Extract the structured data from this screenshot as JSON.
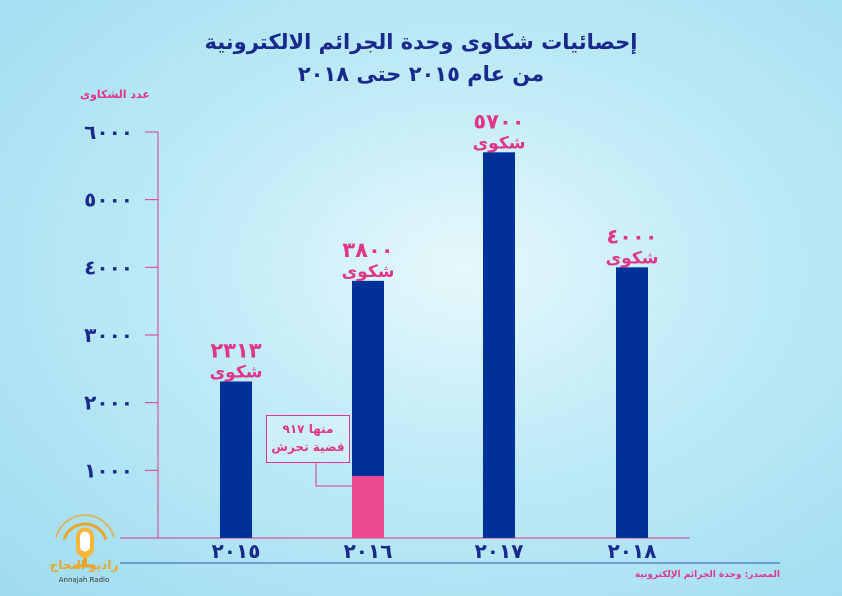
{
  "chart_data": {
    "type": "bar",
    "title": "إحصائيات شكاوى وحدة الجرائم الالكترونية",
    "subtitle": "من عام ٢٠١٥ حتى ٢٠١٨",
    "ylabel": "عدد الشكاوى",
    "xlabel": "",
    "categories": [
      "٢٠١٥",
      "٢٠١٦",
      "٢٠١٧",
      "٢٠١٨"
    ],
    "values": [
      2313,
      3800,
      5700,
      4000
    ],
    "value_labels": [
      "٢٣١٣",
      "٣٨٠٠",
      "٥٧٠٠",
      "٤٠٠٠"
    ],
    "unit_label": "شكوى",
    "ylim": [
      0,
      6000
    ],
    "yticks": [
      1000,
      2000,
      3000,
      4000,
      5000,
      6000
    ],
    "ytick_labels": [
      "١٠٠٠",
      "٢٠٠٠",
      "٣٠٠٠",
      "٤٠٠٠",
      "٥٠٠٠",
      "٦٠٠٠"
    ],
    "grid": false,
    "segment": {
      "category_index": 1,
      "value": 917,
      "label_line1": "منها ٩١٧",
      "label_line2": "قضية تحرش"
    },
    "colors": {
      "bar": "#00309a",
      "segment": "#ec4a8f",
      "axis": "#e0368a",
      "value_text": "#e0368a",
      "tick_text": "#1a2a8c",
      "title": "#1a2a8c"
    }
  },
  "source": "المصدر: وحدة الجرائم الإلكترونية",
  "logo": {
    "name": "راديو النجاح",
    "sub": "Annajah Radio",
    "icon": "microphone-icon"
  }
}
